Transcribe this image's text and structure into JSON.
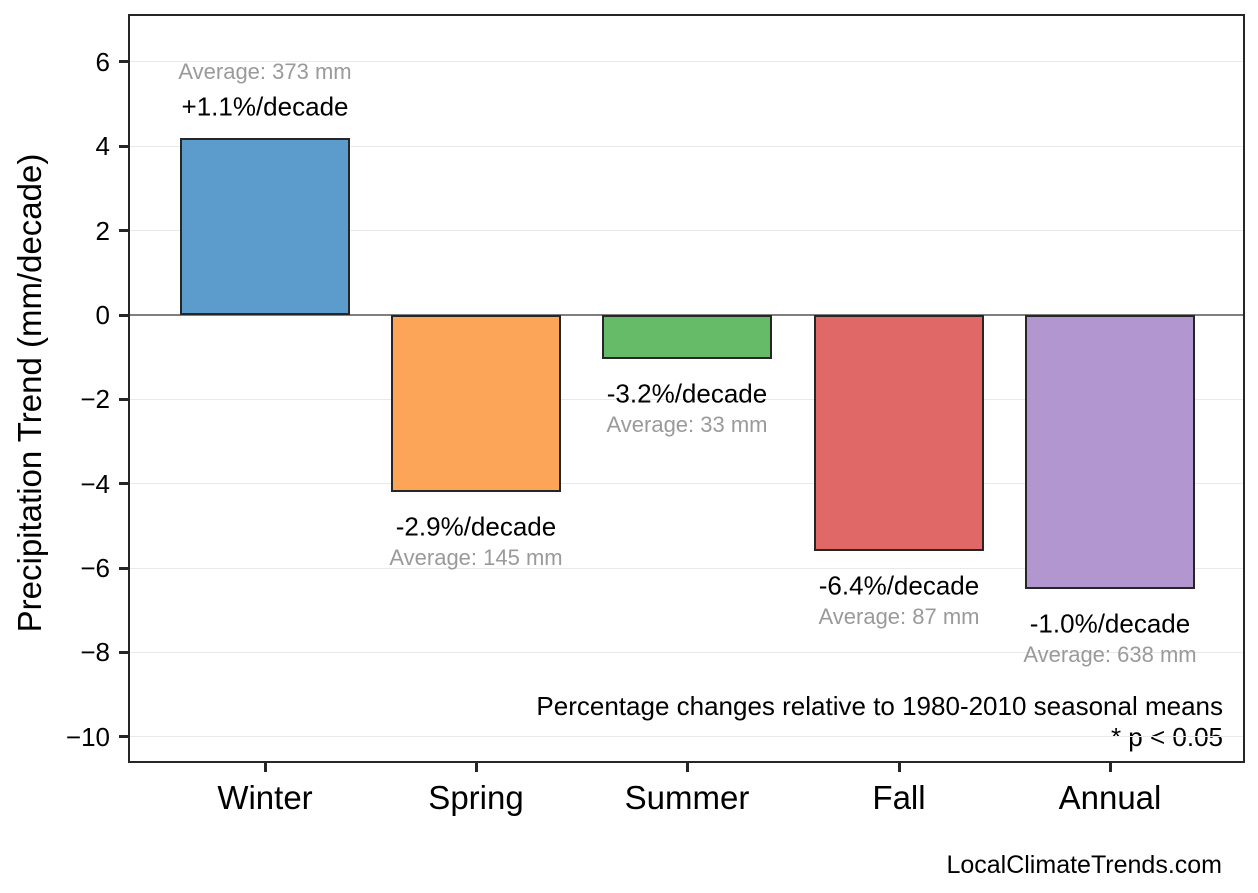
{
  "chart_data": {
    "type": "bar",
    "title": "",
    "ylabel": "Precipitation Trend (mm/decade)",
    "xlabel": "",
    "categories": [
      "Winter",
      "Spring",
      "Summer",
      "Fall",
      "Annual"
    ],
    "values": [
      4.2,
      -4.2,
      -1.05,
      -5.6,
      -6.5
    ],
    "units": "mm/decade",
    "bars": [
      {
        "category": "Winter",
        "trend_mm_per_decade": 4.2,
        "pct_label": "+1.1%/decade",
        "avg_label": "Average: 373 mm",
        "color": "#5c9ccc"
      },
      {
        "category": "Spring",
        "trend_mm_per_decade": -4.2,
        "pct_label": "-2.9%/decade",
        "avg_label": "Average: 145 mm",
        "color": "#fca558"
      },
      {
        "category": "Summer",
        "trend_mm_per_decade": -1.05,
        "pct_label": "-3.2%/decade",
        "avg_label": "Average: 33 mm",
        "color": "#66bb69"
      },
      {
        "category": "Fall",
        "trend_mm_per_decade": -5.6,
        "pct_label": "-6.4%/decade",
        "avg_label": "Average: 87 mm",
        "color": "#e06967"
      },
      {
        "category": "Annual",
        "trend_mm_per_decade": -6.5,
        "pct_label": "-1.0%/decade",
        "avg_label": "Average: 638 mm",
        "color": "#b296cf"
      }
    ],
    "yticks": [
      {
        "value": 6,
        "label": "6"
      },
      {
        "value": 4,
        "label": "4"
      },
      {
        "value": 2,
        "label": "2"
      },
      {
        "value": 0,
        "label": "0"
      },
      {
        "value": -2,
        "label": "−2"
      },
      {
        "value": -4,
        "label": "−4"
      },
      {
        "value": -6,
        "label": "−6"
      },
      {
        "value": -8,
        "label": "−8"
      },
      {
        "value": -10,
        "label": "−10"
      }
    ],
    "ylim": [
      -10.6,
      7.1
    ],
    "grid": true,
    "zero_line": true,
    "legend": null,
    "annotations": [
      "Percentage changes relative to 1980-2010 seasonal means",
      "* p < 0.05"
    ],
    "watermark": "LocalClimateTrends.com",
    "colors": {
      "grid": "#e9e9e9",
      "zero_line": "#7f7f7f",
      "frame": "#262626",
      "bar_edge": "#262626",
      "avg_text": "#9a9a9a",
      "text": "#000000",
      "background": "#ffffff"
    }
  }
}
